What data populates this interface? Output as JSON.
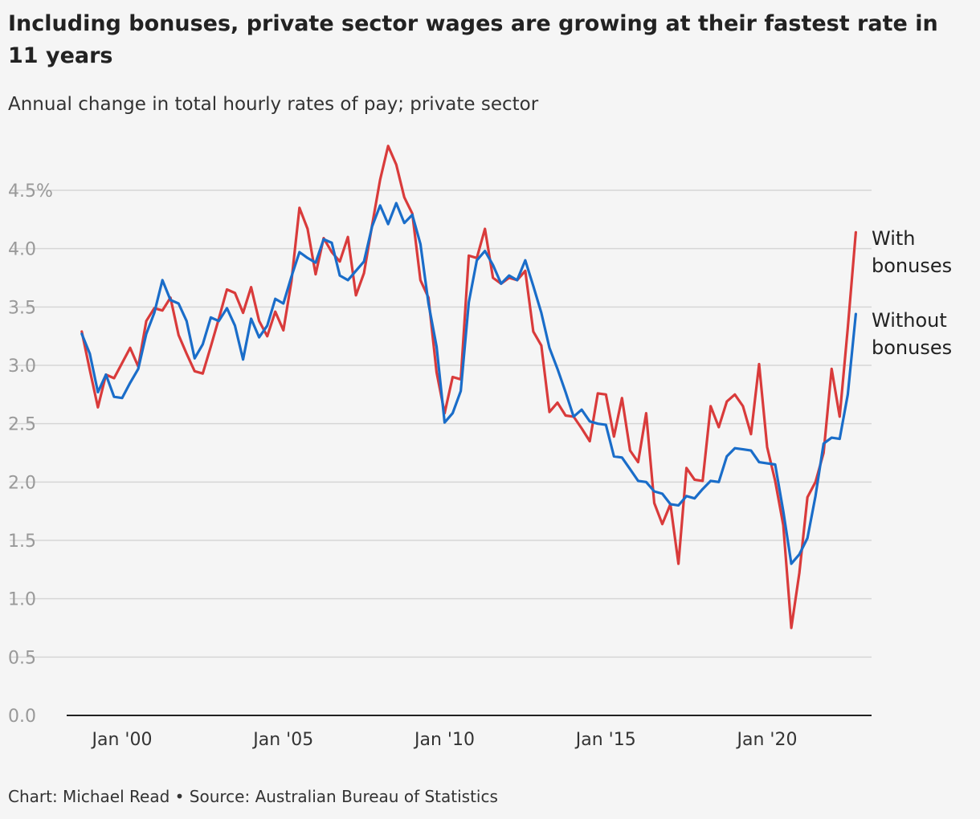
{
  "header": {
    "title": "Including bonuses, private sector wages are growing at their fastest rate in 11 years",
    "subtitle": "Annual change in total hourly rates of pay; private sector"
  },
  "footer": {
    "credit": "Chart: Michael Read • Source: Australian Bureau of Statistics"
  },
  "chart_data": {
    "type": "line",
    "ylim": [
      0,
      4.5
    ],
    "y_ticks": [
      {
        "value": 0,
        "label": "0.0"
      },
      {
        "value": 0.5,
        "label": "0.5"
      },
      {
        "value": 1.0,
        "label": "1.0"
      },
      {
        "value": 1.5,
        "label": "1.5"
      },
      {
        "value": 2.0,
        "label": "2.0"
      },
      {
        "value": 2.5,
        "label": "2.5"
      },
      {
        "value": 3.0,
        "label": "3.0"
      },
      {
        "value": 3.5,
        "label": "3.5"
      },
      {
        "value": 4.0,
        "label": "4.0"
      },
      {
        "value": 4.5,
        "label": "4.5%"
      }
    ],
    "x_ticks": [
      {
        "value": 2000,
        "label": "Jan '00"
      },
      {
        "value": 2005,
        "label": "Jan '05"
      },
      {
        "value": 2010,
        "label": "Jan '10"
      },
      {
        "value": 2015,
        "label": "Jan '15"
      },
      {
        "value": 2020,
        "label": "Jan '20"
      }
    ],
    "grid": true,
    "legend": "direct labels at right end of lines",
    "x_start": 1998.75,
    "x_step": 0.25,
    "series": [
      {
        "name": "With bonuses",
        "label_lines": [
          "With",
          "bonuses"
        ],
        "color": "#d93b3b",
        "values": [
          3.29,
          2.96,
          2.64,
          2.92,
          2.89,
          3.02,
          3.15,
          2.99,
          3.38,
          3.49,
          3.47,
          3.58,
          3.26,
          3.1,
          2.95,
          2.93,
          3.16,
          3.4,
          3.65,
          3.62,
          3.45,
          3.67,
          3.38,
          3.25,
          3.46,
          3.3,
          3.72,
          4.35,
          4.17,
          3.78,
          4.09,
          3.97,
          3.89,
          4.1,
          3.6,
          3.79,
          4.2,
          4.59,
          4.88,
          4.72,
          4.44,
          4.3,
          3.73,
          3.58,
          2.94,
          2.59,
          2.9,
          2.88,
          3.94,
          3.92,
          4.17,
          3.75,
          3.7,
          3.75,
          3.73,
          3.81,
          3.29,
          3.17,
          2.6,
          2.68,
          2.57,
          2.56,
          2.46,
          2.35,
          2.76,
          2.75,
          2.39,
          2.72,
          2.27,
          2.17,
          2.59,
          1.82,
          1.64,
          1.81,
          1.3,
          2.12,
          2.02,
          2.01,
          2.65,
          2.47,
          2.69,
          2.75,
          2.65,
          2.41,
          3.01,
          2.3,
          2.01,
          1.63,
          0.75,
          1.22,
          1.87,
          2.0,
          2.25,
          2.97,
          2.56,
          3.32,
          4.14
        ]
      },
      {
        "name": "Without bonuses",
        "label_lines": [
          "Without",
          "bonuses"
        ],
        "color": "#1a6dc9",
        "values": [
          3.27,
          3.1,
          2.77,
          2.92,
          2.73,
          2.72,
          2.85,
          2.97,
          3.27,
          3.45,
          3.73,
          3.56,
          3.53,
          3.38,
          3.06,
          3.18,
          3.41,
          3.38,
          3.49,
          3.34,
          3.05,
          3.4,
          3.24,
          3.34,
          3.57,
          3.53,
          3.76,
          3.97,
          3.92,
          3.88,
          4.08,
          4.05,
          3.77,
          3.73,
          3.81,
          3.89,
          4.19,
          4.37,
          4.21,
          4.39,
          4.22,
          4.29,
          4.04,
          3.53,
          3.16,
          2.51,
          2.59,
          2.78,
          3.54,
          3.9,
          3.98,
          3.86,
          3.7,
          3.77,
          3.73,
          3.9,
          3.68,
          3.45,
          3.15,
          2.97,
          2.77,
          2.56,
          2.62,
          2.52,
          2.5,
          2.49,
          2.22,
          2.21,
          2.11,
          2.01,
          2.0,
          1.92,
          1.9,
          1.81,
          1.8,
          1.88,
          1.86,
          1.94,
          2.01,
          2.0,
          2.22,
          2.29,
          2.28,
          2.27,
          2.17,
          2.16,
          2.15,
          1.75,
          1.3,
          1.38,
          1.52,
          1.88,
          2.33,
          2.38,
          2.37,
          2.75,
          3.44
        ]
      }
    ]
  }
}
